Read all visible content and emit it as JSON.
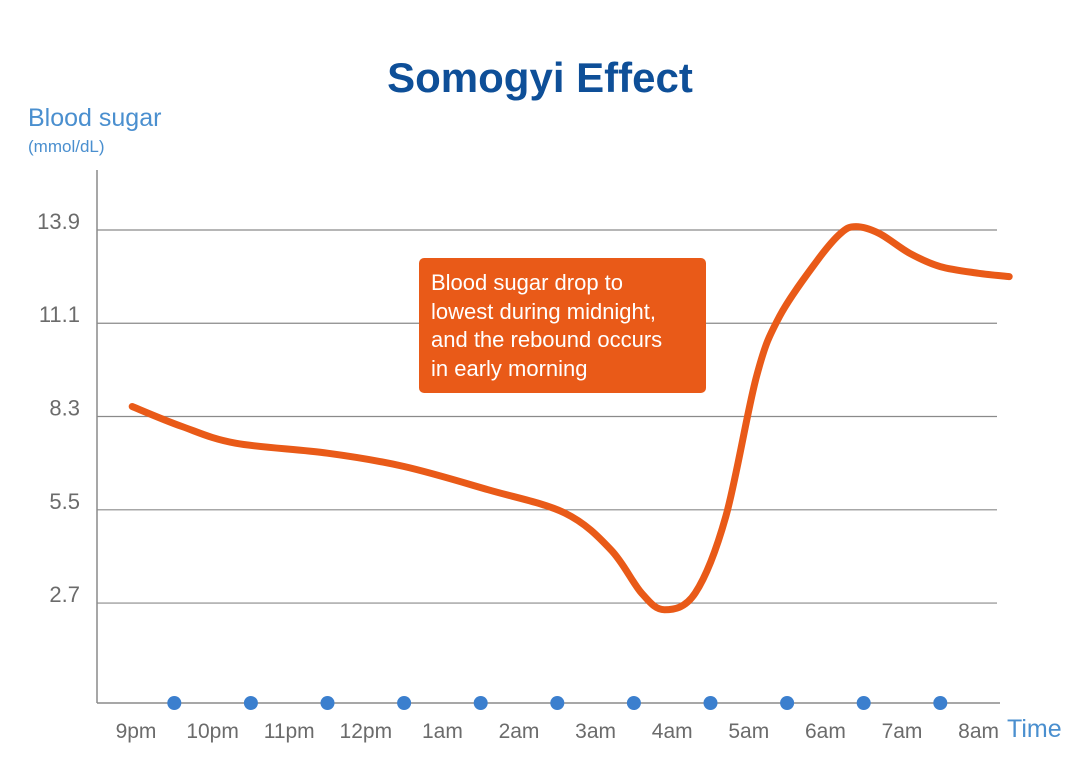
{
  "chart_data": {
    "type": "line",
    "title": "Somogyi Effect",
    "ylabel": "Blood sugar",
    "ylabel_unit": "(mmol/dL)",
    "xlabel": "Time",
    "categories": [
      "9pm",
      "10pm",
      "11pm",
      "12pm",
      "1am",
      "2am",
      "3am",
      "4am",
      "5am",
      "6am",
      "7am",
      "8am"
    ],
    "yticks": [
      13.9,
      11.1,
      8.3,
      5.5,
      2.7
    ],
    "ylim": [
      -0.3,
      15.7
    ],
    "grid": true,
    "series": [
      {
        "x": [
          -0.05,
          0.6,
          1.3,
          2.5,
          3.5,
          4.6,
          5.6,
          6.2,
          6.6,
          6.9,
          7.3,
          7.7,
          8.1,
          8.4,
          8.9,
          9.2,
          9.4,
          9.7,
          10.1,
          10.5,
          11.0,
          11.4
        ],
        "values": [
          8.6,
          8.0,
          7.5,
          7.2,
          6.8,
          6.1,
          5.4,
          4.3,
          3.0,
          2.5,
          3.0,
          5.3,
          9.5,
          11.3,
          13.0,
          13.8,
          14.0,
          13.8,
          13.2,
          12.8,
          12.6,
          12.5
        ]
      }
    ],
    "annotation_lines": [
      "Blood sugar drop to",
      "lowest during midnight,",
      "and the rebound occurs",
      "in early morning"
    ],
    "colors": {
      "title": "#0e4f98",
      "axis_labels": "#4a8fcf",
      "line": "#e95a18",
      "annotation_bg": "#e95a18",
      "markers": "#3b7fce",
      "grid": "#8a8a8a"
    }
  }
}
